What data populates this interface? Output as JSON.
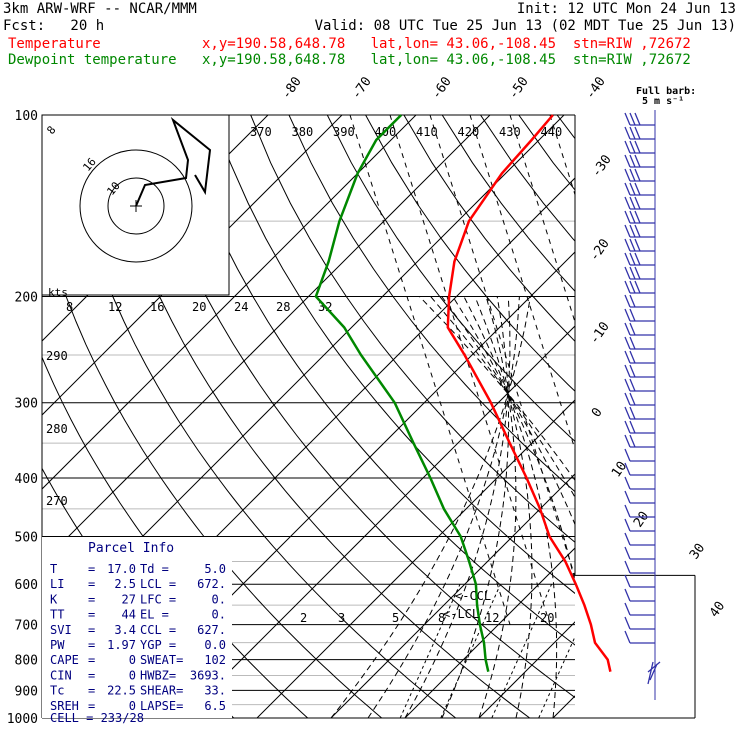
{
  "header": {
    "model": "3km ARW-WRF -- NCAR/MMM",
    "init": "Init: 12 UTC Mon 24 Jun 13",
    "fcst": "Fcst:   20 h",
    "valid": "Valid: 08 UTC Tue 25 Jun 13 (02 MDT Tue 25 Jun 13)",
    "temp_label": "Temperature",
    "temp_info": "x,y=190.58,648.78   lat,lon= 43.06,-108.45  stn=RIW ,72672",
    "dew_label": "Dewpoint temperature",
    "dew_info": "x,y=190.58,648.78   lat,lon= 43.06,-108.45  stn=RIW ,72672"
  },
  "colors": {
    "temperature": "#ff0000",
    "dewpoint": "#008800",
    "barbs": "#3333aa",
    "grid": "#000000",
    "parcel_box_text": "#000080"
  },
  "chart_data": {
    "type": "line",
    "title": "",
    "diagram": "skew-T log-P",
    "pressure_levels": [
      "100",
      "200",
      "300",
      "400",
      "500",
      "600",
      "700",
      "800",
      "900",
      "1000"
    ],
    "isotherm_labels": [
      "-80",
      "-70",
      "-60",
      "-50",
      "-40",
      "-30",
      "-20",
      "-10",
      "0",
      "10",
      "20",
      "30",
      "40"
    ],
    "theta_labels": [
      "370",
      "380",
      "390",
      "400",
      "410",
      "420",
      "430",
      "440"
    ],
    "dry_adiabat_labels": [
      "290",
      "280",
      "270"
    ],
    "mixing_ratio_labels_top": [
      "8",
      "12",
      "16",
      "20",
      "24",
      "28",
      "32"
    ],
    "mixing_ratio_labels_bottom": [
      "2",
      "3",
      "5",
      "8",
      "12",
      "20"
    ],
    "ylim": [
      1000,
      100
    ],
    "y_scale": "log",
    "series": [
      {
        "name": "Temperature",
        "color": "#ff0000",
        "points": [
          {
            "p": 838,
            "t": 21.5
          },
          {
            "p": 800,
            "t": 19.5
          },
          {
            "p": 750,
            "t": 15.5
          },
          {
            "p": 700,
            "t": 12.5
          },
          {
            "p": 650,
            "t": 9.0
          },
          {
            "p": 600,
            "t": 5.0
          },
          {
            "p": 550,
            "t": 0.5
          },
          {
            "p": 500,
            "t": -5.0
          },
          {
            "p": 450,
            "t": -10.0
          },
          {
            "p": 400,
            "t": -16.0
          },
          {
            "p": 350,
            "t": -23.0
          },
          {
            "p": 300,
            "t": -31.0
          },
          {
            "p": 250,
            "t": -41.0
          },
          {
            "p": 225,
            "t": -47.0
          },
          {
            "p": 200,
            "t": -51.0
          },
          {
            "p": 175,
            "t": -55.0
          },
          {
            "p": 150,
            "t": -58.5
          },
          {
            "p": 125,
            "t": -60.5
          },
          {
            "p": 110,
            "t": -61.0
          },
          {
            "p": 100,
            "t": -61.5
          }
        ]
      },
      {
        "name": "Dewpoint temperature",
        "color": "#008800",
        "points": [
          {
            "p": 838,
            "t": 5.0
          },
          {
            "p": 800,
            "t": 3.0
          },
          {
            "p": 750,
            "t": 0.5
          },
          {
            "p": 700,
            "t": -2.5
          },
          {
            "p": 650,
            "t": -5.5
          },
          {
            "p": 600,
            "t": -8.5
          },
          {
            "p": 550,
            "t": -12.5
          },
          {
            "p": 500,
            "t": -17.0
          },
          {
            "p": 450,
            "t": -23.0
          },
          {
            "p": 400,
            "t": -29.0
          },
          {
            "p": 350,
            "t": -36.0
          },
          {
            "p": 300,
            "t": -44.0
          },
          {
            "p": 250,
            "t": -55.0
          },
          {
            "p": 225,
            "t": -61.0
          },
          {
            "p": 200,
            "t": -69.0
          },
          {
            "p": 175,
            "t": -72.0
          },
          {
            "p": 150,
            "t": -76.0
          },
          {
            "p": 125,
            "t": -80.0
          },
          {
            "p": 110,
            "t": -82.0
          },
          {
            "p": 100,
            "t": -82.0
          }
        ]
      }
    ],
    "annotations": [
      "<-CCL",
      "<-LCL"
    ],
    "wind_barb_label": "Full barb:\n5 m s⁻¹",
    "hodograph": {
      "units_label": "kts",
      "ring_labels": [
        "8",
        "16",
        "10"
      ]
    }
  },
  "parcel_info": {
    "title": "Parcel Info",
    "rows": [
      {
        "l1": "T   ",
        "v1": "17.0",
        "l2": " Td = ",
        "v2": "5.0"
      },
      {
        "l1": "LI  ",
        "v1": "2.5",
        "l2": " LCL = ",
        "v2": "672."
      },
      {
        "l1": "K   ",
        "v1": "27",
        "l2": " LFC = ",
        "v2": "0."
      },
      {
        "l1": "TT  ",
        "v1": "44",
        "l2": " EL  = ",
        "v2": "0."
      },
      {
        "l1": "SVI ",
        "v1": "3.4",
        "l2": " CCL = ",
        "v2": "627."
      },
      {
        "l1": "PW  ",
        "v1": "1.97",
        "l2": " YGP = ",
        "v2": "0.0"
      },
      {
        "l1": "CAPE",
        "v1": "0",
        "l2": " SWEAT=",
        "v2": "102"
      },
      {
        "l1": "CIN ",
        "v1": "0",
        "l2": " HWBZ=",
        "v2": "3693."
      },
      {
        "l1": "Tc  ",
        "v1": "22.5",
        "l2": " SHEAR=",
        "v2": "33."
      },
      {
        "l1": "SREH",
        "v1": "0",
        "l2": " LAPSE=",
        "v2": "6.5"
      }
    ],
    "cell": "CELL = 233/28"
  }
}
